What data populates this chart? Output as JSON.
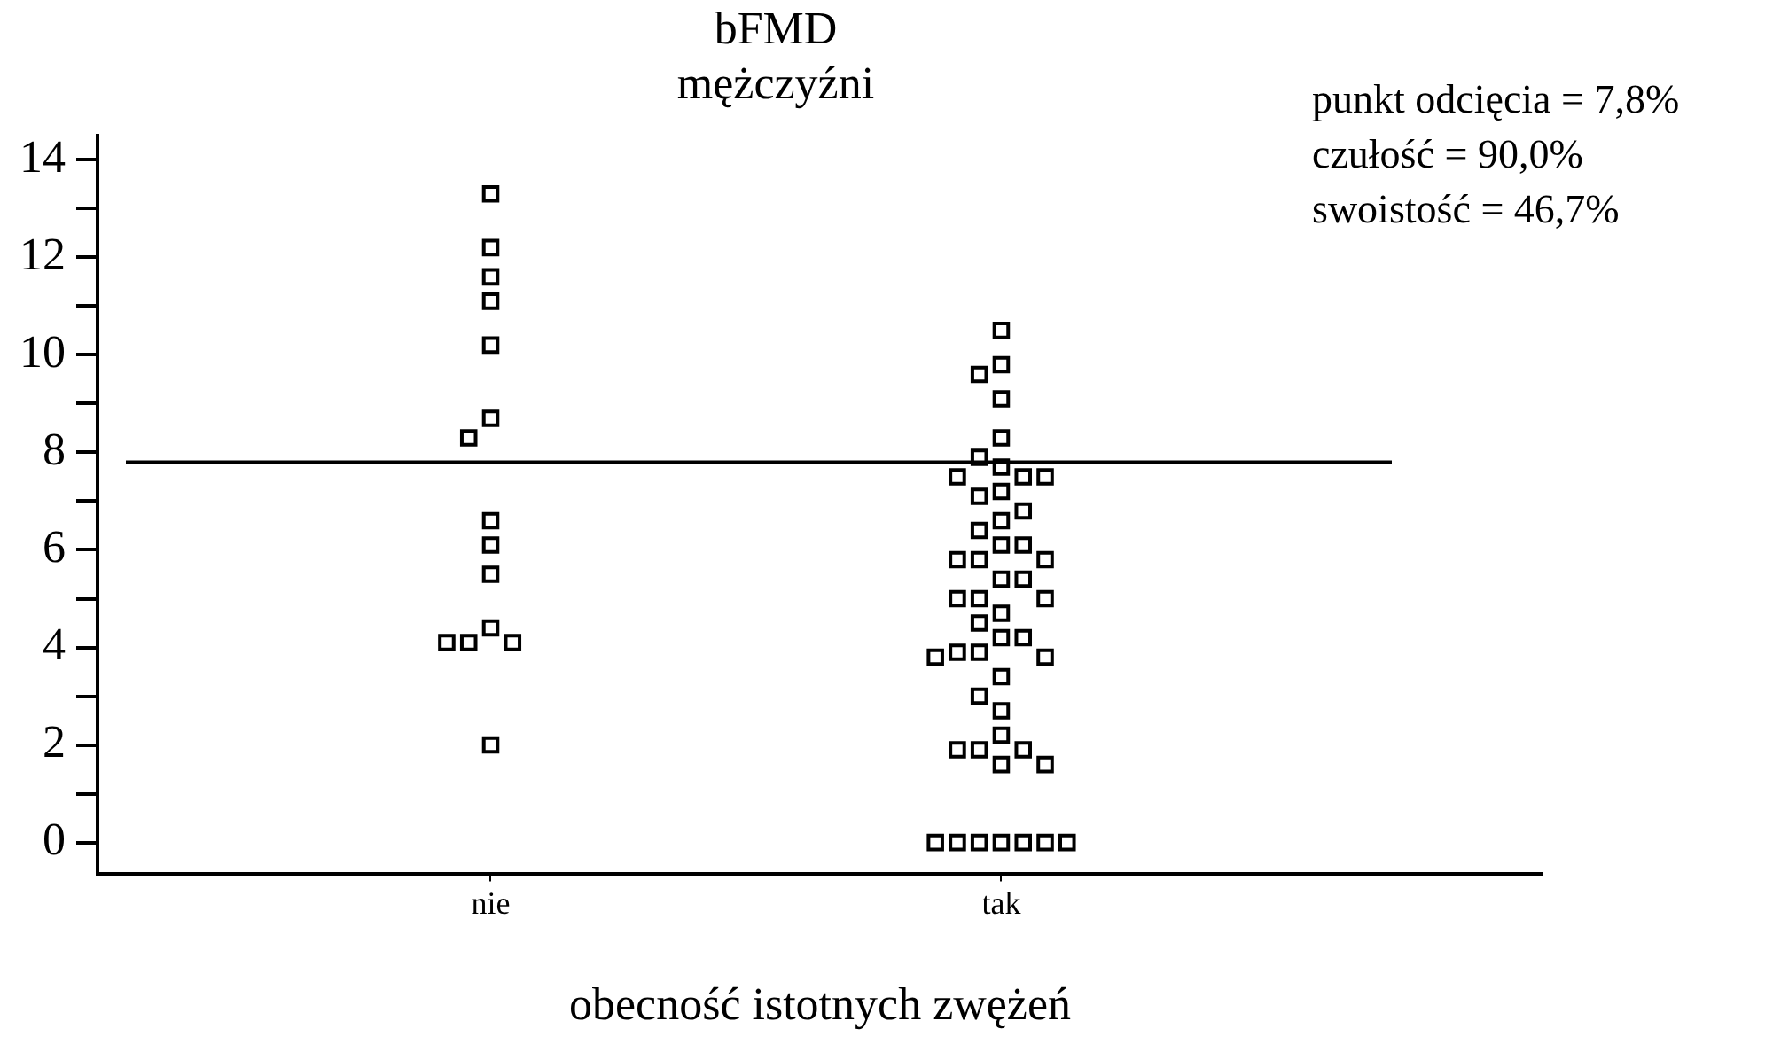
{
  "chart_data": {
    "type": "scatter",
    "title": "bFMD",
    "subtitle": "mężczyźni",
    "xlabel": "obecność istotnych zwężeń",
    "categories": [
      "nie",
      "tak"
    ],
    "series": [
      {
        "color": "#000000",
        "x": [
          "nie",
          "nie",
          "nie",
          "nie",
          "nie",
          "nie",
          "nie",
          "nie",
          "nie",
          "nie",
          "nie",
          "nie",
          "nie",
          "nie",
          "nie"
        ],
        "values": [
          13.3,
          12.2,
          11.6,
          11.1,
          10.2,
          8.7,
          8.3,
          6.6,
          6.1,
          5.5,
          4.4,
          4.1,
          4.1,
          4.1,
          2.0
        ]
      },
      {
        "color": "#000000",
        "x": [
          "tak",
          "tak",
          "tak",
          "tak",
          "tak",
          "tak",
          "tak",
          "tak",
          "tak",
          "tak",
          "tak",
          "tak",
          "tak",
          "tak",
          "tak",
          "tak",
          "tak",
          "tak",
          "tak",
          "tak",
          "tak",
          "tak",
          "tak",
          "tak",
          "tak",
          "tak",
          "tak",
          "tak",
          "tak",
          "tak",
          "tak",
          "tak",
          "tak",
          "tak",
          "tak",
          "tak",
          "tak",
          "tak",
          "tak",
          "tak",
          "tak",
          "tak",
          "tak",
          "tak",
          "tak",
          "tak",
          "tak",
          "tak",
          "tak"
        ],
        "values": [
          10.5,
          9.8,
          9.6,
          9.1,
          8.3,
          7.9,
          7.7,
          7.5,
          7.5,
          7.5,
          7.2,
          7.1,
          6.8,
          6.6,
          6.4,
          6.1,
          6.1,
          5.8,
          5.8,
          5.8,
          5.4,
          5.4,
          5.0,
          5.0,
          5.0,
          4.7,
          4.5,
          4.2,
          4.2,
          3.9,
          3.9,
          3.8,
          3.8,
          3.4,
          3.0,
          2.7,
          2.2,
          1.9,
          1.9,
          1.9,
          1.6,
          1.6,
          0,
          0,
          0,
          0,
          0,
          0,
          0
        ]
      }
    ],
    "ylim": [
      -0.65,
      14.5
    ],
    "yticks": [
      0,
      {
        "value": 1,
        "label": null
      },
      2,
      {
        "value": 3,
        "label": null
      },
      4,
      {
        "value": 5,
        "label": null
      },
      6,
      {
        "value": 7,
        "label": null
      },
      8,
      {
        "value": 9,
        "label": null
      },
      10,
      {
        "value": 11,
        "label": null
      },
      12,
      {
        "value": 13,
        "label": null
      },
      14
    ],
    "ref_lines": [
      {
        "axis": "y",
        "value": 7.8,
        "color": "#000000"
      }
    ],
    "annotations": [
      "punkt odcięcia = 7,8%",
      "czułość = 90,0%",
      "swoistość = 46,7%"
    ],
    "marker": "square",
    "grid": false,
    "legend": false
  }
}
